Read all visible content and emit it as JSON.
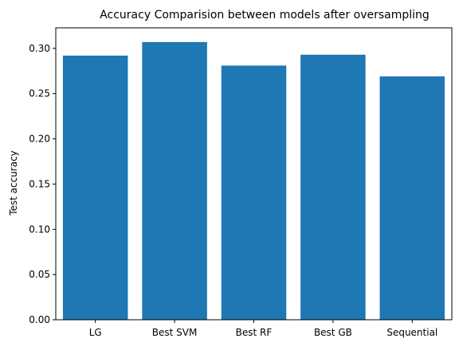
{
  "chart_data": {
    "type": "bar",
    "title": "Accuracy Comparision between models after oversampling",
    "xlabel": "",
    "ylabel": "Test accuracy",
    "categories": [
      "LG",
      "Best SVM",
      "Best RF",
      "Best GB",
      "Sequential"
    ],
    "values": [
      0.292,
      0.307,
      0.281,
      0.293,
      0.269
    ],
    "ylim": [
      0,
      0.3227
    ],
    "yticks": [
      "0.00",
      "0.05",
      "0.10",
      "0.15",
      "0.20",
      "0.25",
      "0.30"
    ],
    "grid": false,
    "bar_color": "#1f77b4"
  }
}
